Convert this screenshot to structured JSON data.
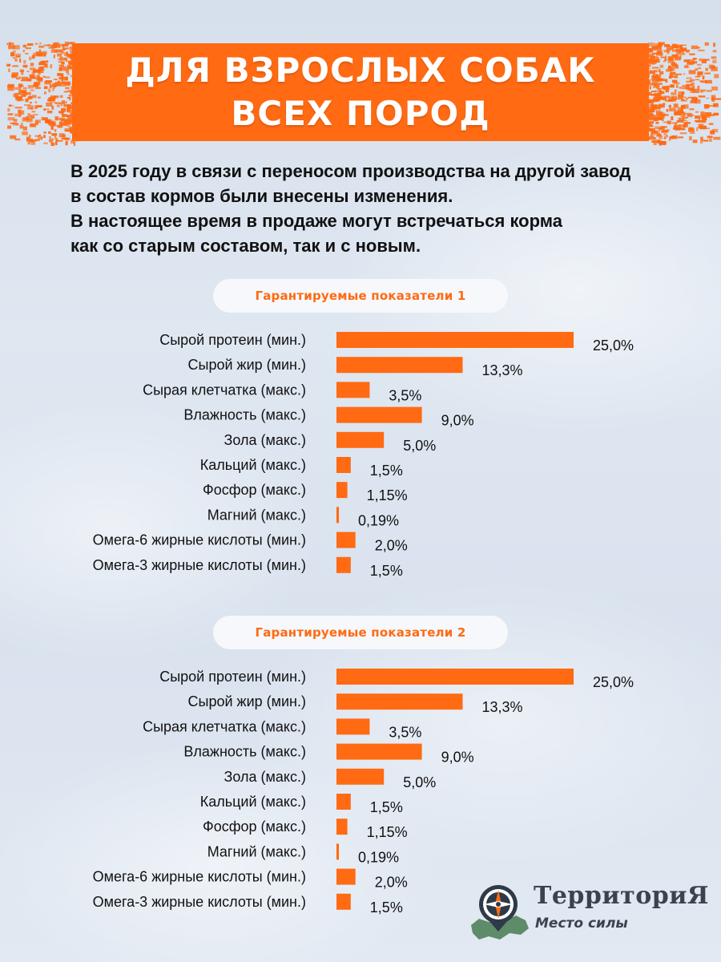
{
  "banner": {
    "line1": "ДЛЯ ВЗРОСЛЫХ СОБАК",
    "line2": "ВСЕХ ПОРОД"
  },
  "intro": {
    "line1": "В 2025 году в связи с переносом производства на другой завод",
    "line2": "в состав кормов были внесены изменения.",
    "line3": "В настоящее время в продаже могут встречаться корма",
    "line4": "как со старым составом, так и с новым."
  },
  "colors": {
    "accent": "#ff6a13",
    "text": "#111111",
    "pill_bg": "#f6f8fb"
  },
  "chart_data": [
    {
      "type": "bar",
      "orientation": "horizontal",
      "title": "Гарантируемые показатели 1",
      "categories": [
        "Сырой протеин (мин.)",
        "Сырой жир (мин.)",
        "Сырая клетчатка (макс.)",
        "Влажность (макс.)",
        "Зола (макс.)",
        "Кальций (макс.)",
        "Фосфор (макс.)",
        "Магний (макс.)",
        "Омега-6 жирные кислоты (мин.)",
        "Омега-3 жирные кислоты (мин.)"
      ],
      "values": [
        25.0,
        13.3,
        3.5,
        9.0,
        5.0,
        1.5,
        1.15,
        0.19,
        2.0,
        1.5
      ],
      "value_labels": [
        "25,0%",
        "13,3%",
        "3,5%",
        "9,0%",
        "5,0%",
        "1,5%",
        "1,15%",
        "0,19%",
        "2,0%",
        "1,5%"
      ],
      "xlim": [
        0,
        25
      ],
      "grid": false,
      "legend": "none"
    },
    {
      "type": "bar",
      "orientation": "horizontal",
      "title": "Гарантируемые показатели 2",
      "categories": [
        "Сырой протеин (мин.)",
        "Сырой жир (мин.)",
        "Сырая клетчатка (макс.)",
        "Влажность (макс.)",
        "Зола (макс.)",
        "Кальций (макс.)",
        "Фосфор (макс.)",
        "Магний (макс.)",
        "Омега-6 жирные кислоты (мин.)",
        "Омега-3 жирные кислоты (мин.)"
      ],
      "values": [
        25.0,
        13.3,
        3.5,
        9.0,
        5.0,
        1.5,
        1.15,
        0.19,
        2.0,
        1.5
      ],
      "value_labels": [
        "25,0%",
        "13,3%",
        "3,5%",
        "9,0%",
        "5,0%",
        "1,5%",
        "1,15%",
        "0,19%",
        "2,0%",
        "1,5%"
      ],
      "xlim": [
        0,
        25
      ],
      "grid": false,
      "legend": "none"
    }
  ],
  "logo": {
    "name": "ТерриториЯ",
    "subtitle": "Место силы",
    "icon": "compass-map-icon"
  }
}
